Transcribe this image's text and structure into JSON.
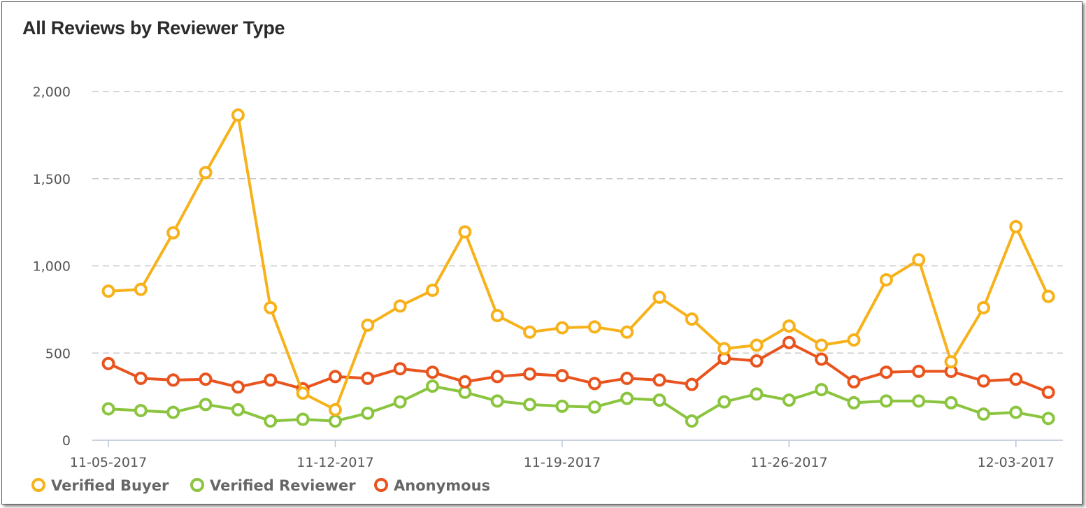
{
  "chart_data": {
    "type": "line",
    "title": "All Reviews by Reviewer Type",
    "xlabel": "",
    "ylabel": "",
    "ylim": [
      0,
      2000
    ],
    "y_ticks": [
      "0",
      "500",
      "1,000",
      "1,500",
      "2,000"
    ],
    "y_tick_values": [
      0,
      500,
      1000,
      1500,
      2000
    ],
    "x": [
      "2017-11-05",
      "2017-11-06",
      "2017-11-07",
      "2017-11-08",
      "2017-11-09",
      "2017-11-10",
      "2017-11-11",
      "2017-11-12",
      "2017-11-13",
      "2017-11-14",
      "2017-11-15",
      "2017-11-16",
      "2017-11-17",
      "2017-11-18",
      "2017-11-19",
      "2017-11-20",
      "2017-11-21",
      "2017-11-22",
      "2017-11-23",
      "2017-11-24",
      "2017-11-25",
      "2017-11-26",
      "2017-11-27",
      "2017-11-28",
      "2017-11-29",
      "2017-11-30",
      "2017-12-01",
      "2017-12-02",
      "2017-12-03",
      "2017-12-04"
    ],
    "x_tick_labels": [
      {
        "index": 0,
        "label": "11-05-2017"
      },
      {
        "index": 7,
        "label": "11-12-2017"
      },
      {
        "index": 14,
        "label": "11-19-2017"
      },
      {
        "index": 21,
        "label": "11-26-2017"
      },
      {
        "index": 28,
        "label": "12-03-2017"
      }
    ],
    "grid": "horizontal dashed",
    "legend_position": "bottom-left",
    "series": [
      {
        "name": "Verified Buyer",
        "color": "#f7b21b",
        "values": [
          855,
          865,
          1190,
          1535,
          1865,
          760,
          270,
          175,
          660,
          770,
          860,
          1195,
          715,
          620,
          645,
          650,
          620,
          820,
          695,
          525,
          545,
          655,
          545,
          575,
          920,
          1035,
          450,
          760,
          1225,
          825
        ]
      },
      {
        "name": "Verified Reviewer",
        "color": "#8bc53f",
        "values": [
          180,
          170,
          160,
          205,
          175,
          110,
          120,
          110,
          155,
          220,
          310,
          275,
          225,
          205,
          195,
          190,
          240,
          230,
          110,
          220,
          265,
          230,
          290,
          215,
          225,
          225,
          215,
          150,
          160,
          125
        ]
      },
      {
        "name": "Anonymous",
        "color": "#e9541e",
        "values": [
          440,
          355,
          345,
          350,
          305,
          345,
          295,
          365,
          355,
          410,
          390,
          335,
          365,
          380,
          370,
          325,
          355,
          345,
          320,
          470,
          455,
          560,
          465,
          335,
          390,
          395,
          395,
          340,
          350,
          275
        ]
      }
    ]
  }
}
